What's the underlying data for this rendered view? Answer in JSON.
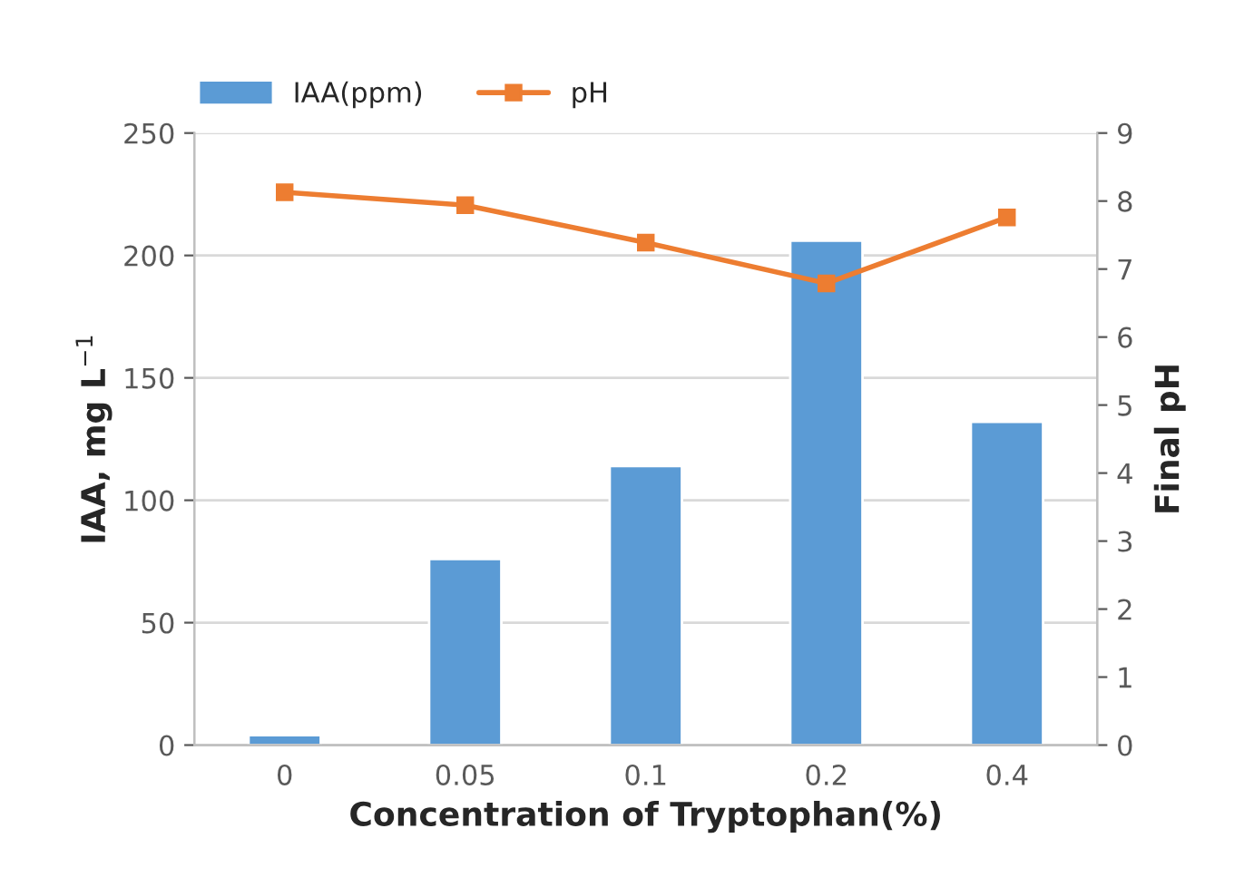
{
  "chart_data": {
    "type": "bar",
    "xlabel": "Concentration of Tryptophan(%)",
    "ylabel": "IAA, mg L$^{−1}$",
    "y2label": "Final pH",
    "categories": [
      "0",
      "0.05",
      "0.1",
      "0.2",
      "0.4"
    ],
    "series": [
      {
        "name": "IAA(ppm)",
        "color": "#5b9bd5",
        "values": [
          4,
          76,
          114,
          206,
          132
        ]
      },
      {
        "name": "pH",
        "type": "line",
        "axis": "y2",
        "color": "#ed7d31",
        "marker": "square",
        "values": [
          8.13,
          7.94,
          7.39,
          6.79,
          7.76
        ]
      }
    ],
    "ylim": [
      0,
      250
    ],
    "yticks": [
      0,
      50,
      100,
      150,
      200,
      250
    ],
    "y2lim": [
      0,
      9
    ],
    "y2ticks": [
      0,
      1,
      2,
      3,
      4,
      5,
      6,
      7,
      8,
      9
    ],
    "grid": "y",
    "legend": "top left"
  }
}
